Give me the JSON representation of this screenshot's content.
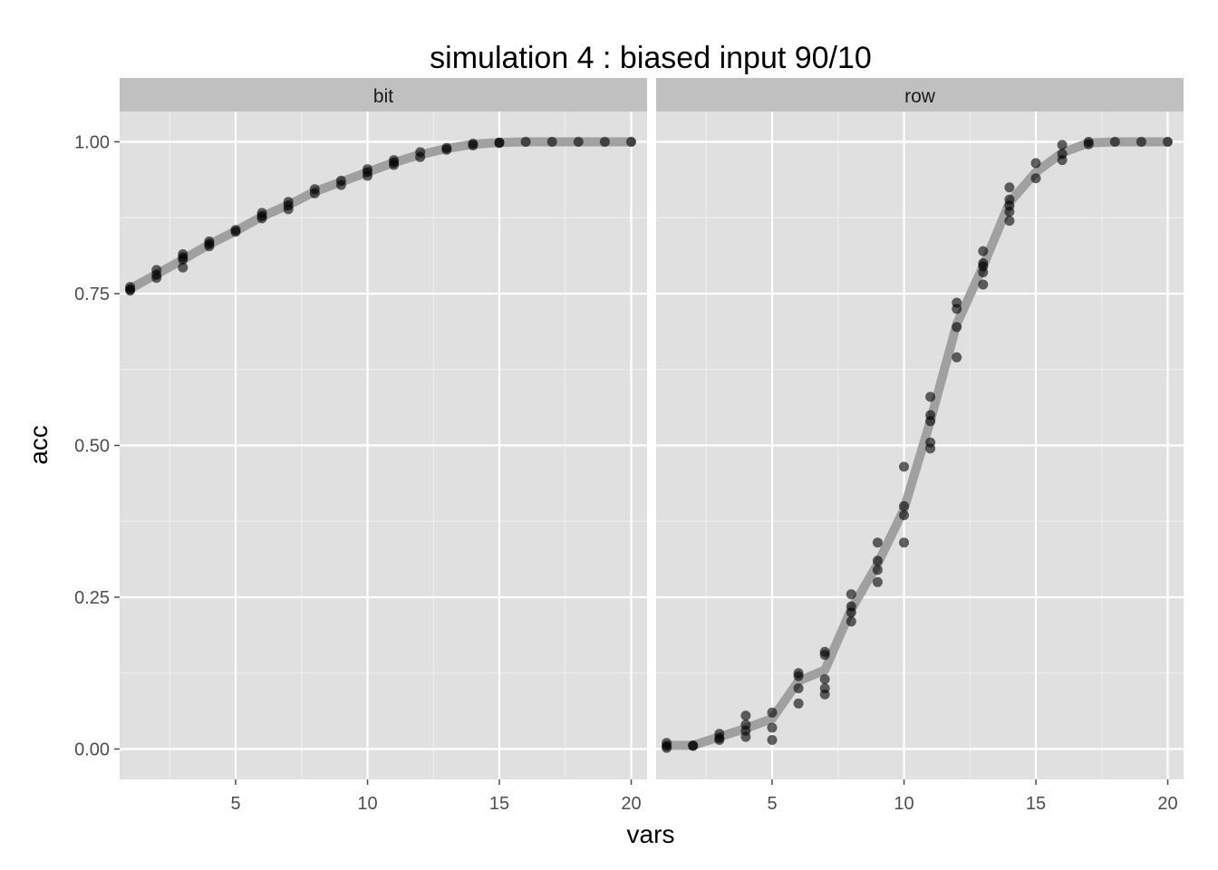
{
  "chart_data": {
    "type": "scatter",
    "title": "simulation 4 : biased input 90/10",
    "xlabel": "vars",
    "ylabel": "acc",
    "xlim": [
      0.6,
      20.6
    ],
    "ylim": [
      -0.05,
      1.05
    ],
    "x_ticks": [
      5,
      10,
      15,
      20
    ],
    "y_ticks": [
      0.0,
      0.25,
      0.5,
      0.75,
      1.0
    ],
    "y_tick_labels": [
      "0.00",
      "0.25",
      "0.50",
      "0.75",
      "1.00"
    ],
    "grid": true,
    "colors": {
      "panel_bg": "#e0e0e0",
      "strip_bg": "#c0c0c0",
      "grid_major": "#ffffff",
      "grid_minor": "#f0f0f0",
      "points": "#000000",
      "smooth_line": "#999999"
    },
    "facets": [
      {
        "label": "bit",
        "mean_line": [
          [
            1,
            0.758
          ],
          [
            2,
            0.782
          ],
          [
            3,
            0.806
          ],
          [
            4,
            0.831
          ],
          [
            5,
            0.853
          ],
          [
            6,
            0.877
          ],
          [
            7,
            0.896
          ],
          [
            8,
            0.918
          ],
          [
            9,
            0.934
          ],
          [
            10,
            0.95
          ],
          [
            11,
            0.966
          ],
          [
            12,
            0.979
          ],
          [
            13,
            0.989
          ],
          [
            14,
            0.996
          ],
          [
            15,
            0.999
          ],
          [
            16,
            1.0
          ],
          [
            17,
            1.0
          ],
          [
            18,
            1.0
          ],
          [
            19,
            1.0
          ],
          [
            20,
            1.0
          ]
        ],
        "points": [
          [
            1,
            0.757
          ],
          [
            1,
            0.761
          ],
          [
            1,
            0.755
          ],
          [
            2,
            0.789
          ],
          [
            2,
            0.781
          ],
          [
            2,
            0.776
          ],
          [
            3,
            0.815
          ],
          [
            3,
            0.806
          ],
          [
            3,
            0.793
          ],
          [
            3,
            0.81
          ],
          [
            4,
            0.836
          ],
          [
            4,
            0.828
          ],
          [
            4,
            0.832
          ],
          [
            5,
            0.852
          ],
          [
            5,
            0.855
          ],
          [
            6,
            0.883
          ],
          [
            6,
            0.874
          ],
          [
            6,
            0.878
          ],
          [
            7,
            0.901
          ],
          [
            7,
            0.889
          ],
          [
            7,
            0.895
          ],
          [
            8,
            0.922
          ],
          [
            8,
            0.915
          ],
          [
            9,
            0.936
          ],
          [
            9,
            0.929
          ],
          [
            10,
            0.955
          ],
          [
            10,
            0.944
          ],
          [
            10,
            0.95
          ],
          [
            11,
            0.97
          ],
          [
            11,
            0.962
          ],
          [
            11,
            0.966
          ],
          [
            12,
            0.983
          ],
          [
            12,
            0.975
          ],
          [
            13,
            0.99
          ],
          [
            13,
            0.987
          ],
          [
            14,
            0.997
          ],
          [
            14,
            0.994
          ],
          [
            15,
            0.999
          ],
          [
            15,
            0.998
          ],
          [
            16,
            1.0
          ],
          [
            17,
            1.0
          ],
          [
            18,
            1.0
          ],
          [
            19,
            1.0
          ],
          [
            20,
            1.0
          ]
        ]
      },
      {
        "label": "row",
        "mean_line": [
          [
            1,
            0.006
          ],
          [
            2,
            0.006
          ],
          [
            3,
            0.02
          ],
          [
            4,
            0.034
          ],
          [
            5,
            0.05
          ],
          [
            6,
            0.112
          ],
          [
            7,
            0.13
          ],
          [
            8,
            0.23
          ],
          [
            9,
            0.305
          ],
          [
            10,
            0.395
          ],
          [
            11,
            0.54
          ],
          [
            12,
            0.7
          ],
          [
            13,
            0.795
          ],
          [
            14,
            0.9
          ],
          [
            15,
            0.95
          ],
          [
            16,
            0.982
          ],
          [
            17,
            0.998
          ],
          [
            18,
            1.0
          ],
          [
            19,
            1.0
          ],
          [
            20,
            1.0
          ]
        ],
        "points": [
          [
            1,
            0.01
          ],
          [
            1,
            0.002
          ],
          [
            1,
            0.005
          ],
          [
            2,
            0.005
          ],
          [
            2,
            0.006
          ],
          [
            3,
            0.025
          ],
          [
            3,
            0.015
          ],
          [
            3,
            0.018
          ],
          [
            4,
            0.055
          ],
          [
            4,
            0.02
          ],
          [
            4,
            0.03
          ],
          [
            4,
            0.04
          ],
          [
            5,
            0.06
          ],
          [
            5,
            0.035
          ],
          [
            5,
            0.015
          ],
          [
            6,
            0.125
          ],
          [
            6,
            0.1
          ],
          [
            6,
            0.075
          ],
          [
            6,
            0.12
          ],
          [
            7,
            0.16
          ],
          [
            7,
            0.115
          ],
          [
            7,
            0.09
          ],
          [
            7,
            0.1
          ],
          [
            7,
            0.155
          ],
          [
            8,
            0.255
          ],
          [
            8,
            0.235
          ],
          [
            8,
            0.21
          ],
          [
            8,
            0.225
          ],
          [
            9,
            0.34
          ],
          [
            9,
            0.31
          ],
          [
            9,
            0.295
          ],
          [
            9,
            0.275
          ],
          [
            10,
            0.465
          ],
          [
            10,
            0.4
          ],
          [
            10,
            0.385
          ],
          [
            10,
            0.34
          ],
          [
            11,
            0.58
          ],
          [
            11,
            0.55
          ],
          [
            11,
            0.54
          ],
          [
            11,
            0.505
          ],
          [
            11,
            0.495
          ],
          [
            12,
            0.735
          ],
          [
            12,
            0.725
          ],
          [
            12,
            0.695
          ],
          [
            12,
            0.645
          ],
          [
            13,
            0.82
          ],
          [
            13,
            0.8
          ],
          [
            13,
            0.795
          ],
          [
            13,
            0.785
          ],
          [
            13,
            0.765
          ],
          [
            14,
            0.925
          ],
          [
            14,
            0.905
          ],
          [
            14,
            0.895
          ],
          [
            14,
            0.885
          ],
          [
            14,
            0.87
          ],
          [
            15,
            0.965
          ],
          [
            15,
            0.94
          ],
          [
            16,
            0.995
          ],
          [
            16,
            0.98
          ],
          [
            16,
            0.97
          ],
          [
            17,
            1.0
          ],
          [
            17,
            0.996
          ],
          [
            18,
            1.0
          ],
          [
            19,
            1.0
          ],
          [
            20,
            1.0
          ]
        ]
      }
    ]
  }
}
